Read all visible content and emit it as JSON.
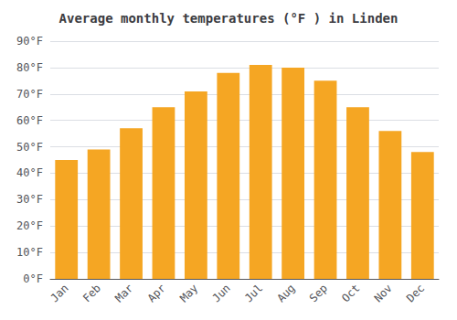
{
  "chart_data": {
    "type": "bar",
    "title": "Average monthly temperatures (°F ) in Linden",
    "categories": [
      "Jan",
      "Feb",
      "Mar",
      "Apr",
      "May",
      "Jun",
      "Jul",
      "Aug",
      "Sep",
      "Oct",
      "Nov",
      "Dec"
    ],
    "values": [
      45,
      49,
      57,
      65,
      71,
      78,
      81,
      80,
      75,
      65,
      56,
      48
    ],
    "color": "#F5A623",
    "ylim": [
      0,
      90
    ],
    "yticks": [
      {
        "value": 0,
        "label": "0°F"
      },
      {
        "value": 10,
        "label": "10°F"
      },
      {
        "value": 20,
        "label": "20°F"
      },
      {
        "value": 30,
        "label": "30°F"
      },
      {
        "value": 40,
        "label": "40°F"
      },
      {
        "value": 50,
        "label": "50°F"
      },
      {
        "value": 60,
        "label": "60°F"
      },
      {
        "value": 70,
        "label": "70°F"
      },
      {
        "value": 80,
        "label": "80°F"
      },
      {
        "value": 90,
        "label": "90°F"
      }
    ],
    "grid": true
  }
}
